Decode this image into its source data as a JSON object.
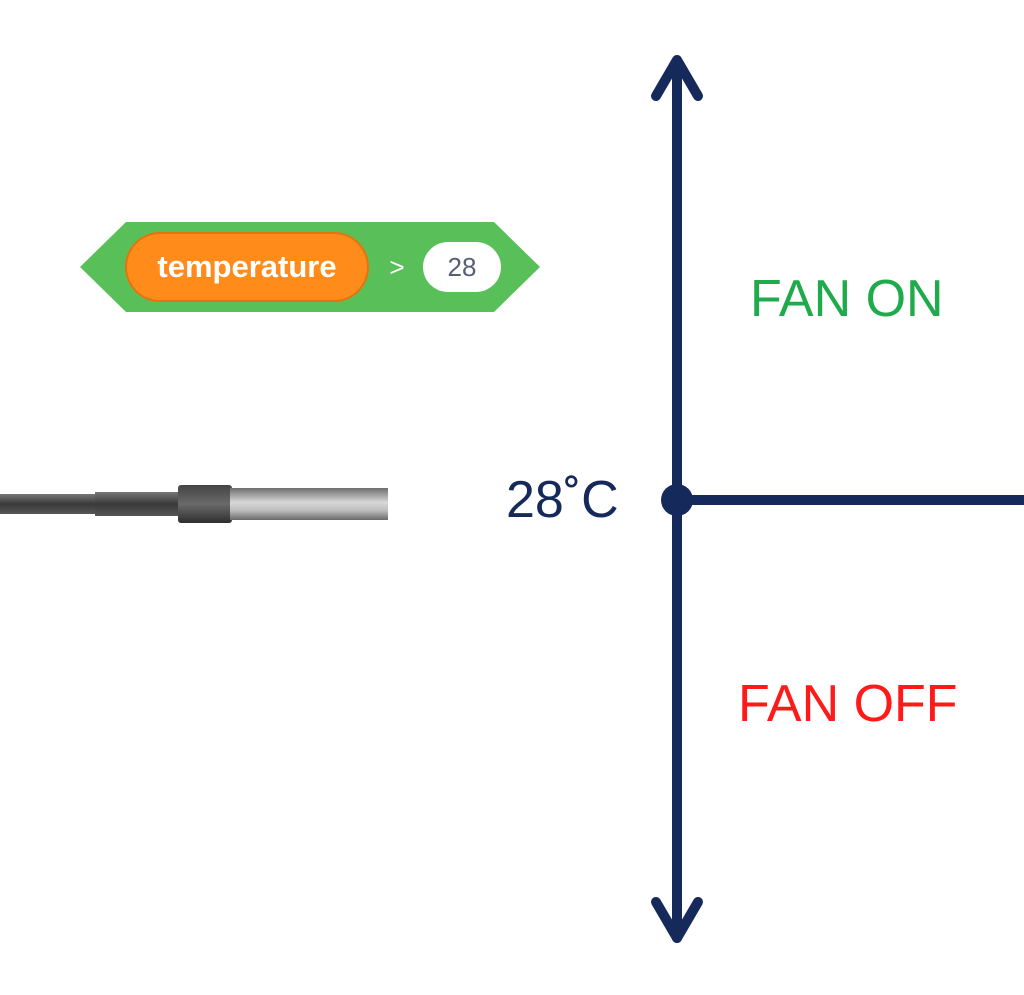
{
  "block": {
    "variable": "temperature",
    "operator": ">",
    "value": "28"
  },
  "diagram": {
    "threshold_label": "28˚C",
    "above_label": "FAN ON",
    "below_label": "FAN OFF"
  },
  "icons": {
    "sensor": "temperature-probe-icon",
    "axis_arrows": "double-headed-arrow"
  },
  "colors": {
    "block_green": "#59c059",
    "variable_orange": "#ff8c1a",
    "axis_navy": "#15295a",
    "fan_on_green": "#1faa4c",
    "fan_off_red": "#ff1a1a"
  }
}
